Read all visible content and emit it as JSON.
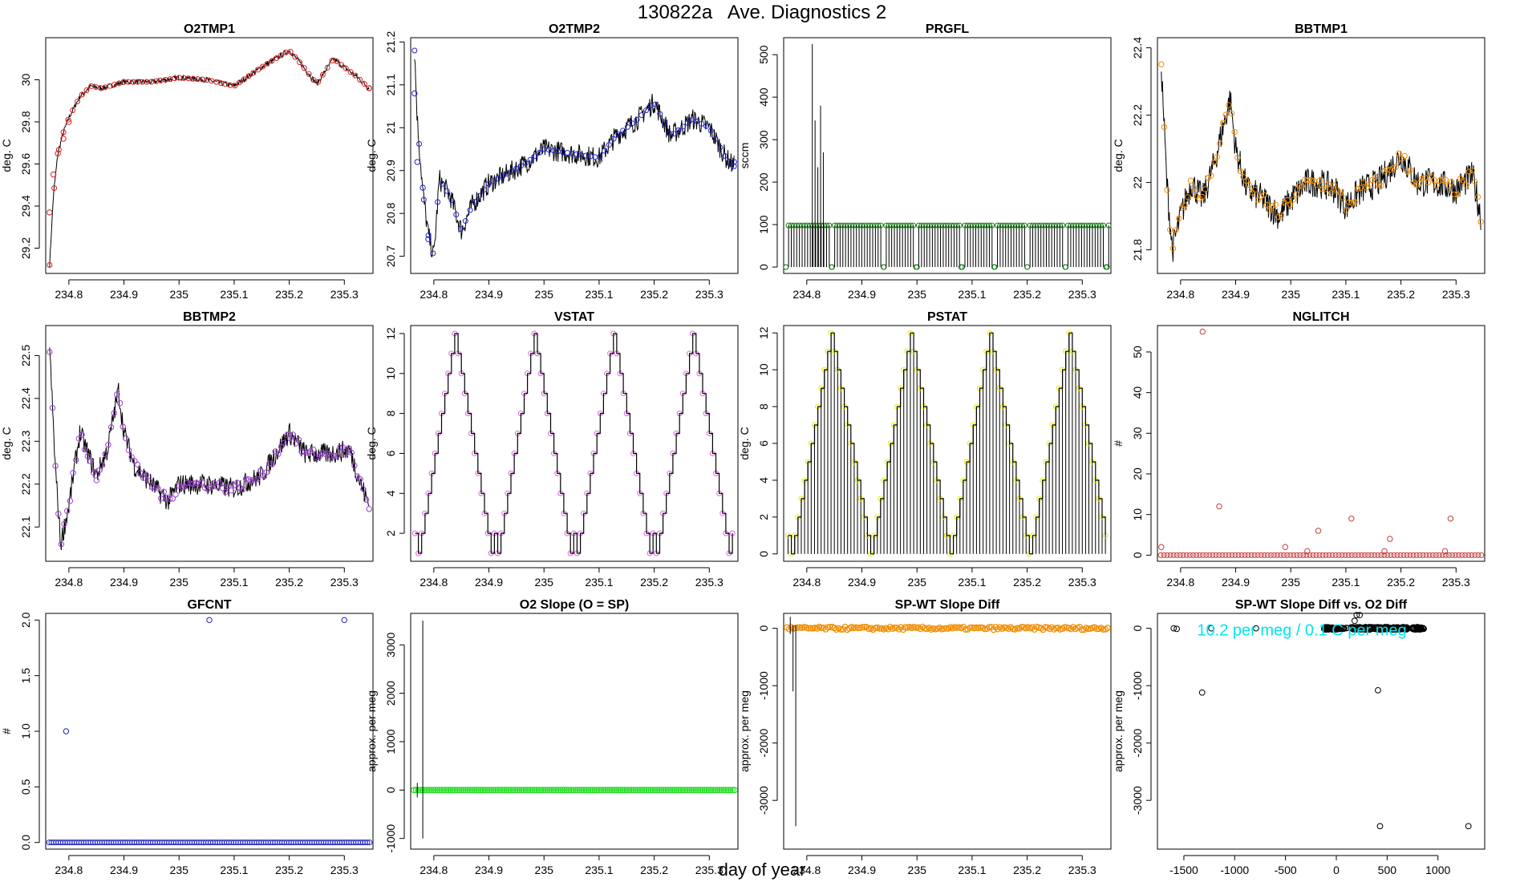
{
  "figure": {
    "title": "130822a   Ave. Diagnostics 2",
    "xlabel": "day of year"
  },
  "colors": {
    "black": "#000000",
    "red": "#d62020",
    "blue": "#2222cc",
    "green": "#1a7a1a",
    "orange": "#f08c00",
    "purple": "#9a3fd0",
    "magenta": "#e060e0",
    "yellow": "#e8e800",
    "brown": "#c04040",
    "navy": "#2020bb",
    "lime": "#22dd22",
    "teal": "#00e5ee"
  },
  "chart_data": [
    {
      "type": "line",
      "title": "O2TMP1",
      "ylabel": "deg. C",
      "xlim": [
        234.758,
        235.352
      ],
      "ylim": [
        29.08,
        30.2
      ],
      "xticks": [
        234.8,
        234.9,
        235.0,
        235.1,
        235.2,
        235.3
      ],
      "yticks": [
        29.2,
        29.4,
        29.6,
        29.8,
        30.0
      ],
      "line_x": [
        234.765,
        234.772,
        234.78,
        234.79,
        234.8,
        234.82,
        234.84,
        234.86,
        234.9,
        234.95,
        235.0,
        235.05,
        235.1,
        235.15,
        235.2,
        235.22,
        235.25,
        235.28,
        235.32,
        235.345
      ],
      "line_y": [
        29.12,
        29.45,
        29.65,
        29.75,
        29.82,
        29.92,
        29.97,
        29.96,
        29.99,
        29.99,
        30.01,
        30.0,
        29.97,
        30.06,
        30.14,
        30.08,
        29.98,
        30.1,
        30.02,
        29.96
      ],
      "noise": 0.012,
      "marker_color": "red",
      "marker_x": [
        234.765,
        234.772,
        234.78,
        234.79,
        234.8,
        235.345
      ],
      "marker_y": [
        29.37,
        29.55,
        29.65,
        29.72,
        29.8,
        29.96
      ],
      "marker_mode": "follow"
    },
    {
      "type": "line",
      "title": "O2TMP2",
      "ylabel": "deg. C",
      "xlim": [
        234.758,
        235.352
      ],
      "ylim": [
        20.66,
        21.21
      ],
      "xticks": [
        234.8,
        234.9,
        235.0,
        235.1,
        235.2,
        235.3
      ],
      "yticks": [
        20.7,
        20.8,
        20.9,
        21.0,
        21.1,
        21.2
      ],
      "line_x": [
        234.765,
        234.77,
        234.78,
        234.79,
        234.8,
        234.81,
        234.83,
        234.85,
        234.87,
        234.9,
        234.93,
        234.97,
        235.0,
        235.05,
        235.1,
        235.13,
        235.17,
        235.2,
        235.23,
        235.27,
        235.3,
        235.33,
        235.345
      ],
      "line_y": [
        21.18,
        21.02,
        20.85,
        20.75,
        20.7,
        20.88,
        20.84,
        20.76,
        20.82,
        20.87,
        20.89,
        20.92,
        20.95,
        20.94,
        20.93,
        20.98,
        21.02,
        21.06,
        20.98,
        21.02,
        21.0,
        20.93,
        20.91
      ],
      "noise": 0.025,
      "marker_color": "blue",
      "marker_x": [
        234.765,
        234.77,
        234.78,
        234.79,
        235.345
      ],
      "marker_y": [
        21.08,
        20.92,
        20.86,
        20.74,
        20.92
      ],
      "marker_mode": "follow"
    },
    {
      "type": "stem",
      "title": "PRGFL",
      "ylabel": "sccm",
      "xlim": [
        234.758,
        235.352
      ],
      "ylim": [
        -15,
        540
      ],
      "xticks": [
        234.8,
        234.9,
        235.0,
        235.1,
        235.2,
        235.3
      ],
      "yticks": [
        0,
        100,
        200,
        300,
        400,
        500
      ],
      "stem_count": 120,
      "stem_value": 98,
      "spikes_x": [
        234.81,
        234.815,
        234.82,
        234.825,
        234.83
      ],
      "spikes_y": [
        525,
        345,
        235,
        380,
        270
      ],
      "zero_x": [
        234.762,
        234.845,
        234.94,
        235.0,
        235.08,
        235.14,
        235.2,
        235.27,
        235.345
      ],
      "marker_color": "green"
    },
    {
      "type": "line",
      "title": "BBTMP1",
      "ylabel": "deg. C",
      "xlim": [
        234.758,
        235.352
      ],
      "ylim": [
        21.73,
        22.43
      ],
      "xticks": [
        234.8,
        234.9,
        235.0,
        235.1,
        235.2,
        235.3
      ],
      "yticks": [
        21.8,
        22.0,
        22.2,
        22.4
      ],
      "line_x": [
        234.765,
        234.775,
        234.785,
        234.8,
        234.82,
        234.84,
        234.86,
        234.89,
        234.9,
        234.92,
        234.95,
        234.98,
        235.0,
        235.03,
        235.05,
        235.08,
        235.1,
        235.13,
        235.16,
        235.2,
        235.23,
        235.26,
        235.3,
        235.33,
        235.345
      ],
      "line_y": [
        22.35,
        22.0,
        21.8,
        21.9,
        22.0,
        21.95,
        22.05,
        22.25,
        22.1,
        21.98,
        21.95,
        21.9,
        21.95,
        22.0,
        22.0,
        21.98,
        21.93,
        21.98,
        22.0,
        22.08,
        22.0,
        22.0,
        21.98,
        22.02,
        21.9
      ],
      "noise": 0.045,
      "marker_color": "orange",
      "marker_mode": "follow_all",
      "marker_count": 110
    },
    {
      "type": "line",
      "title": "BBTMP2",
      "ylabel": "deg. C",
      "xlim": [
        234.758,
        235.352
      ],
      "ylim": [
        22.02,
        22.57
      ],
      "xticks": [
        234.8,
        234.9,
        235.0,
        235.1,
        235.2,
        235.3
      ],
      "yticks": [
        22.1,
        22.2,
        22.3,
        22.4,
        22.5
      ],
      "line_x": [
        234.765,
        234.775,
        234.785,
        234.8,
        234.82,
        234.85,
        234.87,
        234.89,
        234.9,
        234.92,
        234.95,
        234.98,
        235.0,
        235.05,
        235.1,
        235.15,
        235.2,
        235.23,
        235.27,
        235.31,
        235.33,
        235.345
      ],
      "line_y": [
        22.52,
        22.25,
        22.06,
        22.15,
        22.32,
        22.22,
        22.28,
        22.42,
        22.32,
        22.24,
        22.2,
        22.16,
        22.2,
        22.2,
        22.19,
        22.22,
        22.32,
        22.27,
        22.27,
        22.28,
        22.2,
        22.15
      ],
      "noise": 0.025,
      "marker_color": "purple",
      "marker_mode": "follow_all",
      "marker_count": 110
    },
    {
      "type": "step",
      "title": "VSTAT",
      "ylabel": "deg. C",
      "xlim": [
        234.758,
        235.352
      ],
      "ylim": [
        0.6,
        12.4
      ],
      "xticks": [
        234.8,
        234.9,
        235.0,
        235.1,
        235.2,
        235.3
      ],
      "yticks": [
        2,
        4,
        6,
        8,
        10,
        12
      ],
      "start_x": 234.766,
      "end_x": 235.345,
      "step_dx": 0.006,
      "sequence": [
        2,
        1,
        2,
        3,
        4,
        5,
        6,
        7,
        8,
        9,
        10,
        11,
        12,
        11,
        10,
        9,
        8,
        7,
        6,
        5,
        4,
        3,
        2,
        1
      ],
      "marker_color": "magenta"
    },
    {
      "type": "stepstem",
      "title": "PSTAT",
      "ylabel": "deg. C",
      "xlim": [
        234.758,
        235.352
      ],
      "ylim": [
        -0.4,
        12.4
      ],
      "xticks": [
        234.8,
        234.9,
        235.0,
        235.1,
        235.2,
        235.3
      ],
      "yticks": [
        0,
        2,
        4,
        6,
        8,
        10,
        12
      ],
      "start_x": 234.766,
      "end_x": 235.345,
      "step_dx": 0.006,
      "sequence": [
        1,
        0,
        1,
        2,
        3,
        4,
        5,
        6,
        7,
        8,
        9,
        10,
        11,
        12,
        11,
        10,
        9,
        8,
        7,
        6,
        5,
        4,
        3,
        2
      ],
      "marker_color": "yellow"
    },
    {
      "type": "scatter",
      "title": "NGLITCH",
      "ylabel": "#",
      "xlim": [
        234.758,
        235.352
      ],
      "ylim": [
        -1.5,
        56.5
      ],
      "xticks": [
        234.8,
        234.9,
        235.0,
        235.1,
        235.2,
        235.3
      ],
      "yticks": [
        0,
        10,
        20,
        30,
        40,
        50
      ],
      "baseline_count": 100,
      "baseline_y": 0,
      "x": [
        234.765,
        234.84,
        234.87,
        234.99,
        235.03,
        235.05,
        235.11,
        235.17,
        235.18,
        235.28,
        235.29
      ],
      "y": [
        2,
        55,
        12,
        2,
        1,
        6,
        9,
        1,
        4,
        1,
        9
      ],
      "marker_color": "brown"
    },
    {
      "type": "scatter",
      "title": "GFCNT",
      "ylabel": "#",
      "xlim": [
        234.758,
        235.352
      ],
      "ylim": [
        -0.06,
        2.06
      ],
      "xticks": [
        234.8,
        234.9,
        235.0,
        235.1,
        235.2,
        235.3
      ],
      "yticks": [
        0.0,
        0.5,
        1.0,
        1.5,
        2.0
      ],
      "ytick_labels": [
        "0.0",
        "0.5",
        "1.0",
        "1.5",
        "2.0"
      ],
      "baseline_count": 140,
      "baseline_y": 0,
      "x": [
        234.795,
        235.055,
        235.3
      ],
      "y": [
        1,
        2,
        2
      ],
      "marker_color": "navy"
    },
    {
      "type": "slope",
      "title": "O2 Slope (O = SP)",
      "ylabel": "approx. per meg",
      "xlim": [
        234.758,
        235.352
      ],
      "ylim": [
        -1220,
        3650
      ],
      "xticks": [
        234.8,
        234.9,
        235.0,
        235.1,
        235.2,
        235.3
      ],
      "yticks": [
        -1000,
        0,
        1000,
        2000,
        3000
      ],
      "baseline_count": 150,
      "baseline_y": 0,
      "error_bars": [
        [
          234.77,
          -150,
          150
        ],
        [
          234.78,
          -1000,
          3500
        ]
      ],
      "marker_color": "lime"
    },
    {
      "type": "slope",
      "title": "SP-WT Slope Diff",
      "ylabel": "approx. per meg",
      "xlim": [
        234.758,
        235.352
      ],
      "ylim": [
        -3850,
        260
      ],
      "xticks": [
        234.8,
        234.9,
        235.0,
        235.1,
        235.2,
        235.3
      ],
      "yticks": [
        -3000,
        -2000,
        -1000,
        0
      ],
      "baseline_count": 150,
      "baseline_y": 0,
      "baseline_jitter": 25,
      "error_bars": [
        [
          234.77,
          -100,
          200
        ],
        [
          234.775,
          -1100,
          50
        ],
        [
          234.78,
          -3450,
          50
        ]
      ],
      "marker_color": "orange"
    },
    {
      "type": "xyscatter",
      "title": "SP-WT Slope Diff vs. O2 Diff",
      "ylabel": "approx. per meg",
      "xlim": [
        -1760,
        1460
      ],
      "ylim": [
        -3850,
        260
      ],
      "xticks": [
        -1500,
        -1000,
        -500,
        0,
        500,
        1000
      ],
      "yticks": [
        -3000,
        -2000,
        -1000,
        0
      ],
      "x": [
        -1600,
        -1570,
        -1320,
        -1230,
        -790,
        200,
        180,
        230,
        410,
        430,
        1300
      ],
      "y": [
        0,
        -10,
        -1120,
        0,
        0,
        230,
        130,
        230,
        -1080,
        -3450,
        -3450
      ],
      "cluster_x": [
        -120,
        860
      ],
      "cluster_y": [
        -20,
        20
      ],
      "cluster_count": 170,
      "annotation": "10.2 per meg / 0.1 C  per meg",
      "annotation_color": "teal",
      "marker_color": "black"
    }
  ]
}
